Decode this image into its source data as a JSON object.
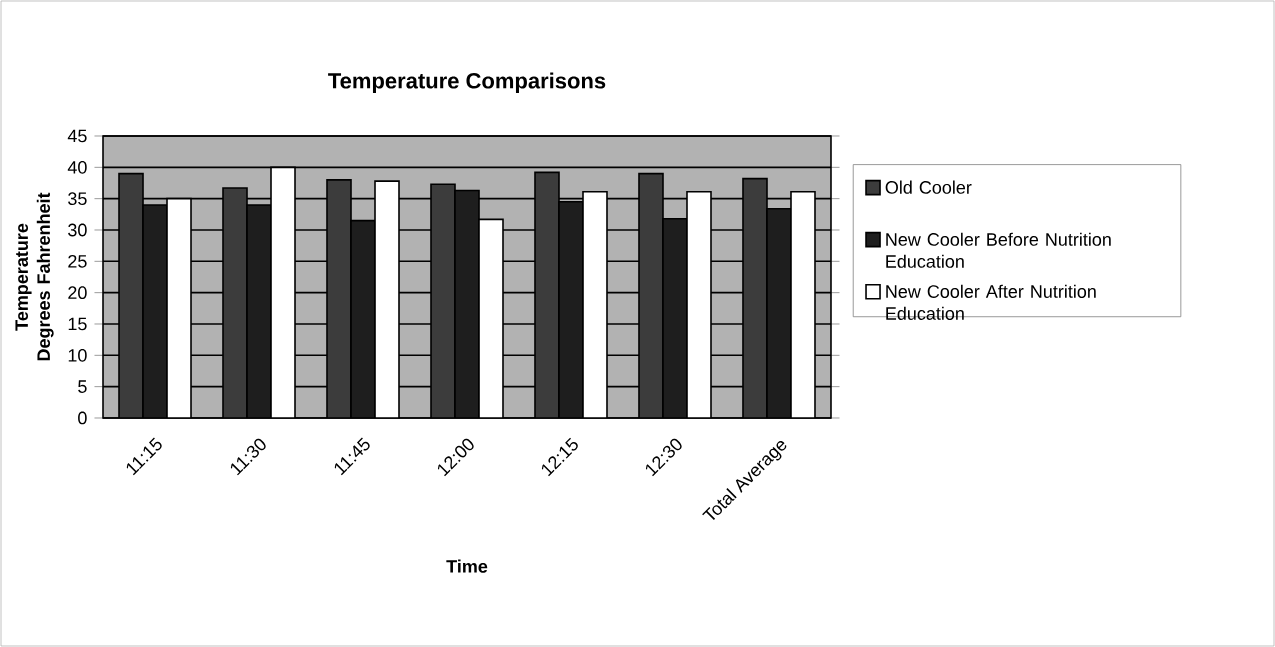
{
  "chart_data": {
    "type": "bar",
    "title": "Temperature Comparisons",
    "xlabel": "Time",
    "ylabel": "Temperature Degrees Fahrenheit",
    "categories": [
      "11:15",
      "11:30",
      "11:45",
      "12:00",
      "12:15",
      "12:30",
      "Total Average"
    ],
    "series": [
      {
        "name": "Old Cooler",
        "color": "#3c3c3c",
        "values": [
          39,
          36.7,
          38,
          37.3,
          39.2,
          39,
          38.2
        ]
      },
      {
        "name": "New Cooler Before Nutrition Education",
        "color": "#1e1e1e",
        "values": [
          34,
          34,
          31.5,
          36.3,
          34.5,
          31.8,
          33.4
        ]
      },
      {
        "name": "New Cooler After Nutrition Education",
        "color": "#ffffff",
        "values": [
          35,
          40,
          37.8,
          31.7,
          36.1,
          36.1,
          36.1
        ]
      }
    ],
    "ylim": [
      0,
      45
    ],
    "yticks": [
      0,
      5,
      10,
      15,
      20,
      25,
      30,
      35,
      40,
      45
    ],
    "grid": "y",
    "legend": "right"
  }
}
